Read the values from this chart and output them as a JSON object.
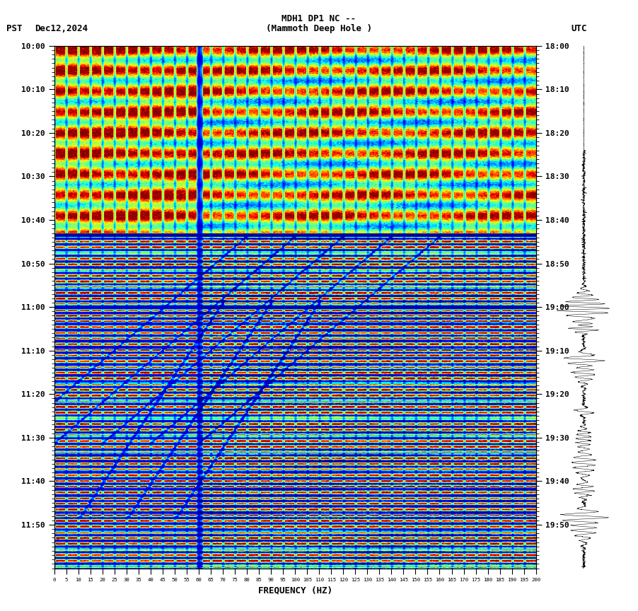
{
  "title_line1": "MDH1 DP1 NC --",
  "title_line2": "(Mammoth Deep Hole )",
  "left_label": "PST",
  "left_date": "Dec12,2024",
  "right_label": "UTC",
  "freq_label": "FREQUENCY (HZ)",
  "freq_ticks": [
    0,
    5,
    10,
    15,
    20,
    25,
    30,
    35,
    40,
    45,
    50,
    55,
    60,
    65,
    70,
    75,
    80,
    85,
    90,
    95,
    100,
    105,
    110,
    115,
    120,
    125,
    130,
    135,
    140,
    145,
    150,
    155,
    160,
    165,
    170,
    175,
    180,
    185,
    190,
    195,
    200
  ],
  "time_ticks_left": [
    "10:00",
    "10:10",
    "10:20",
    "10:30",
    "10:40",
    "10:50",
    "11:00",
    "11:10",
    "11:20",
    "11:30",
    "11:40",
    "11:50"
  ],
  "time_ticks_right": [
    "18:00",
    "18:10",
    "18:20",
    "18:30",
    "18:40",
    "18:50",
    "19:00",
    "19:10",
    "19:20",
    "19:30",
    "19:40",
    "19:50"
  ],
  "freq_min": 0,
  "freq_max": 200,
  "T": 720,
  "F": 400,
  "colormap": "jet",
  "seed": 12345
}
